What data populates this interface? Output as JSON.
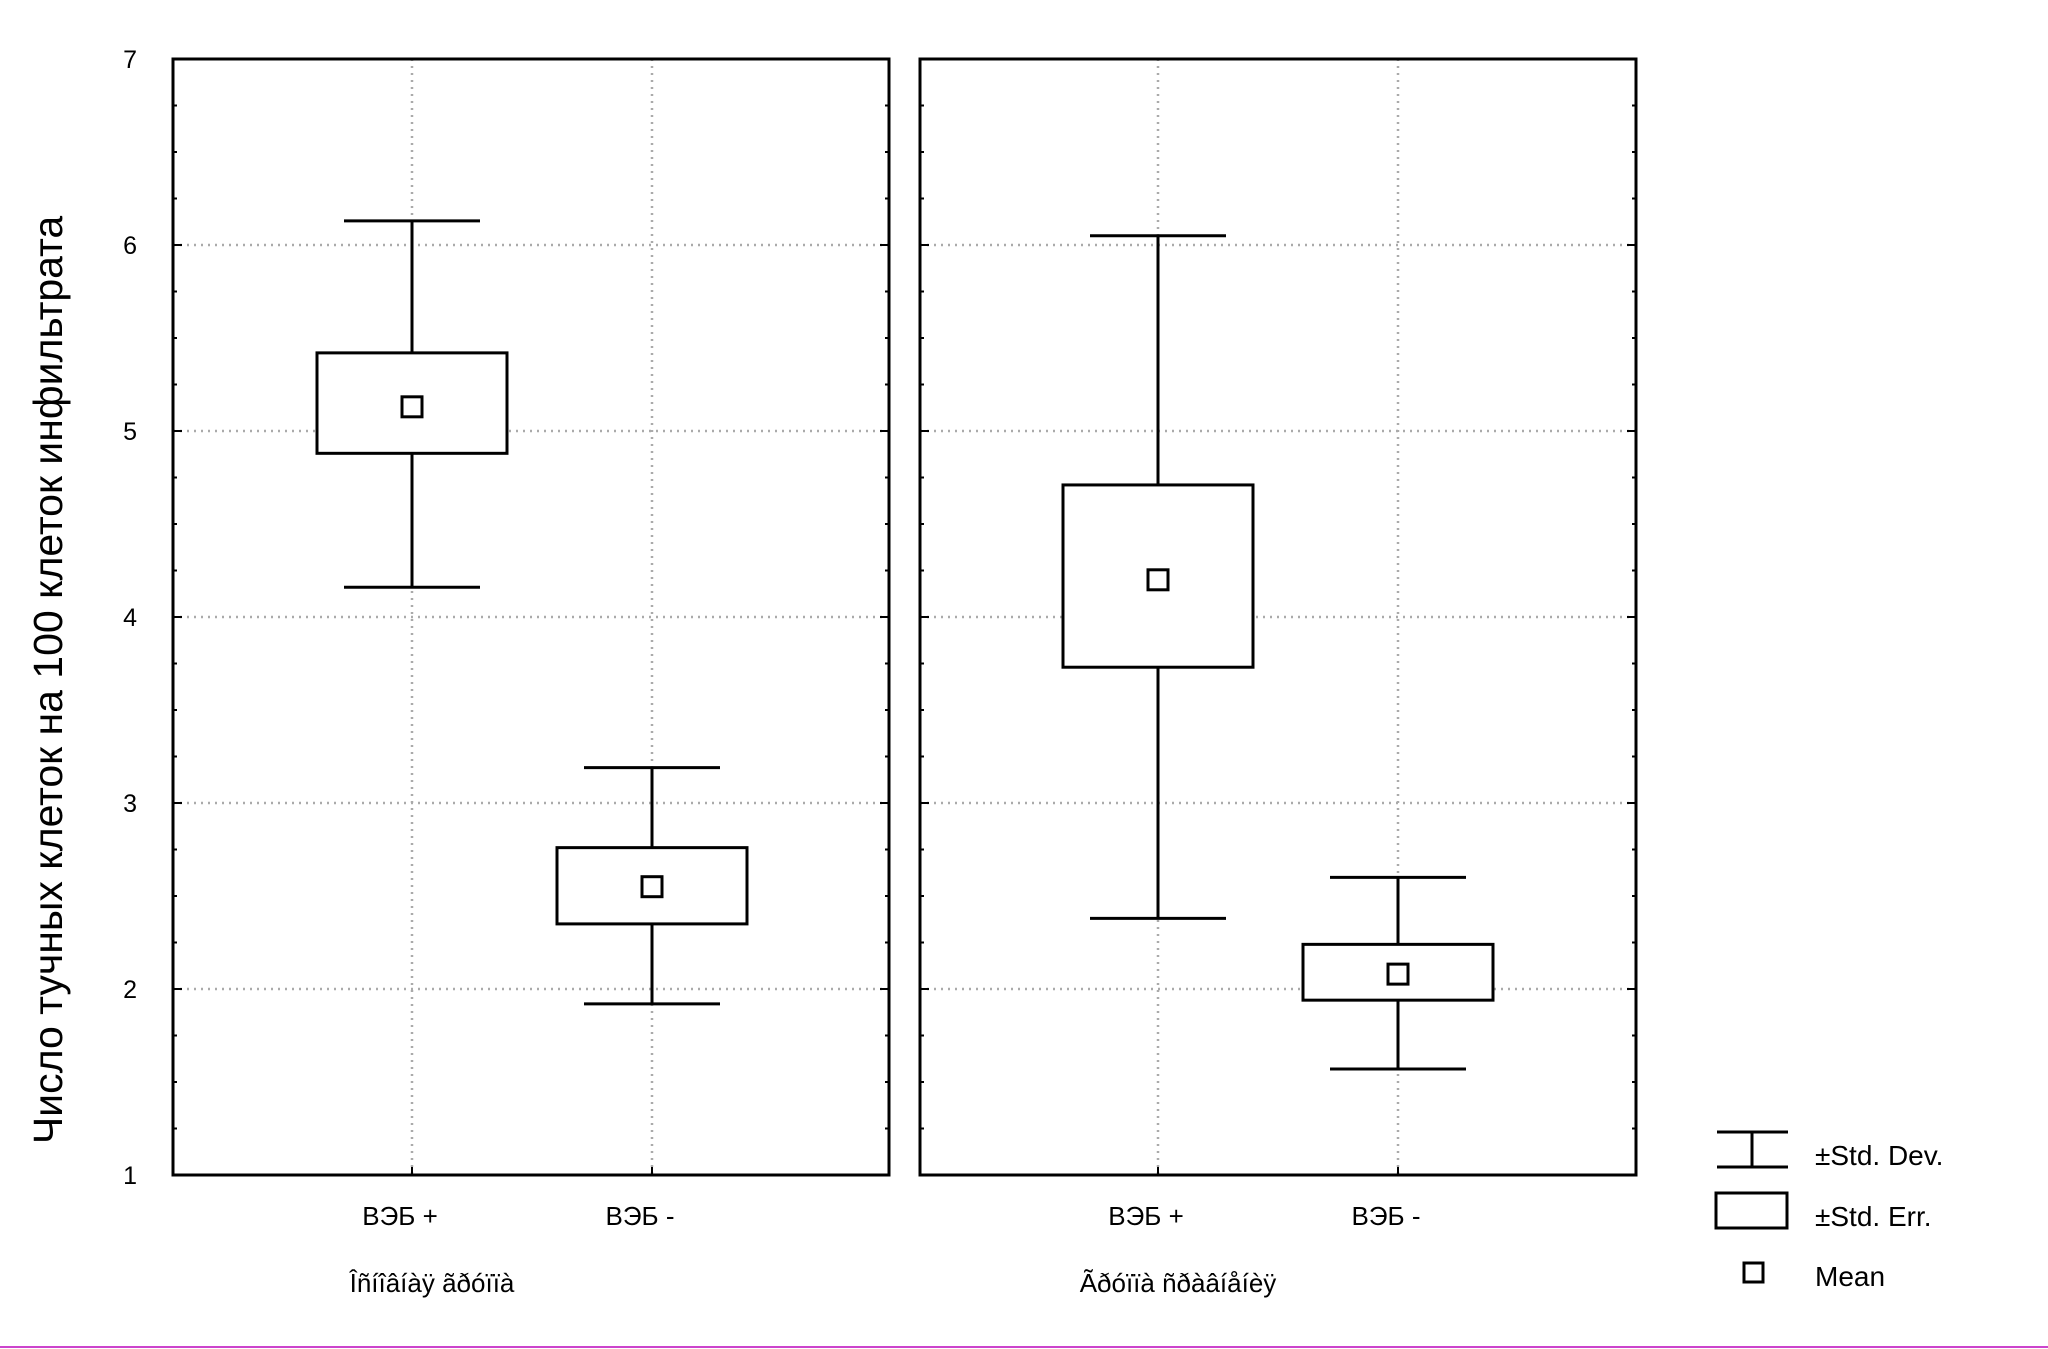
{
  "chart_data": {
    "type": "boxplot",
    "ylabel": "Число тучных клеток на 100 клеток инфильтрата",
    "ylim": [
      1,
      7
    ],
    "yticks": [
      1,
      2,
      3,
      4,
      5,
      6,
      7
    ],
    "grid": true,
    "panels": [
      {
        "group_label": "Îñíîâíàÿ ãðóïïà",
        "categories": [
          "ВЭБ +",
          "ВЭБ -"
        ],
        "boxes": [
          {
            "category": "ВЭБ +",
            "mean": 5.13,
            "se_low": 4.88,
            "se_high": 5.42,
            "sd_low": 4.16,
            "sd_high": 6.13
          },
          {
            "category": "ВЭБ -",
            "mean": 2.55,
            "se_low": 2.35,
            "se_high": 2.76,
            "sd_low": 1.92,
            "sd_high": 3.19
          }
        ]
      },
      {
        "group_label": "Ãðóïïà ñðàâíåíèÿ",
        "categories": [
          "ВЭБ +",
          "ВЭБ -"
        ],
        "boxes": [
          {
            "category": "ВЭБ +",
            "mean": 4.2,
            "se_low": 3.73,
            "se_high": 4.71,
            "sd_low": 2.38,
            "sd_high": 6.05
          },
          {
            "category": "ВЭБ -",
            "mean": 2.08,
            "se_low": 1.94,
            "se_high": 2.24,
            "sd_low": 1.57,
            "sd_high": 2.6
          }
        ]
      }
    ],
    "legend": {
      "position": "bottom-right",
      "items": [
        "±Std. Dev.",
        "±Std. Err.",
        "Mean"
      ]
    }
  }
}
